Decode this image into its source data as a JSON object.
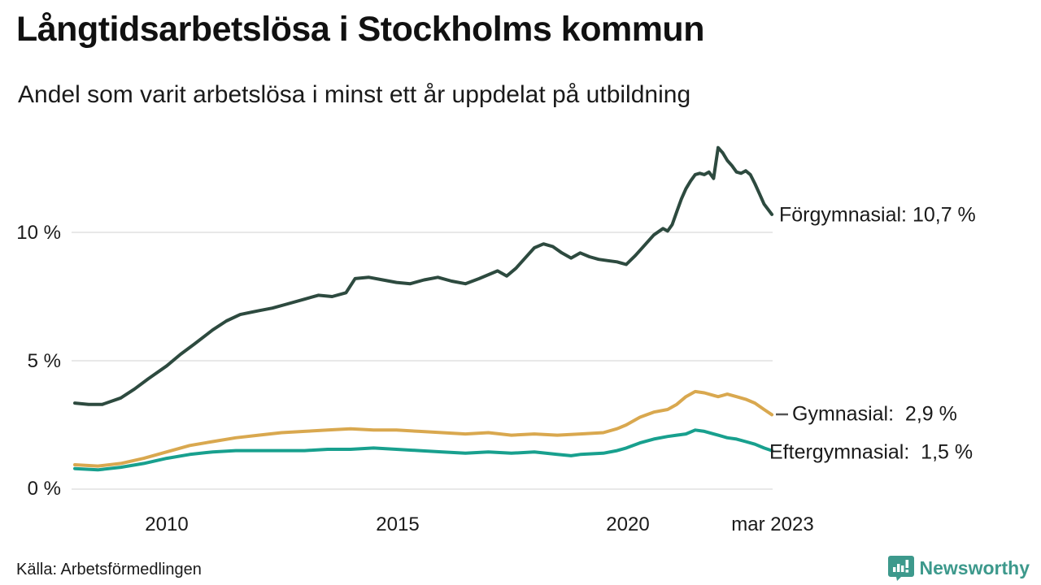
{
  "header": {
    "title": "Långtidsarbetslösa i Stockholms kommun",
    "subtitle": "Andel som varit arbetslösa i minst ett år uppdelat på utbildning"
  },
  "source": {
    "label": "Källa: Arbetsförmedlingen"
  },
  "branding": {
    "name": "Newsworthy",
    "color": "#3d998c",
    "icon": "bar-chart-speech-bubble-icon"
  },
  "chart_data": {
    "type": "line",
    "title": "Långtidsarbetslösa i Stockholms kommun",
    "subtitle": "Andel som varit arbetslösa i minst ett år uppdelat på utbildning",
    "grid": true,
    "grid_color": "#e8e8e8",
    "legend_position": "end-of-line-labels-right",
    "x_axis": {
      "range": [
        2008.0,
        2023.25
      ],
      "ticks": [
        {
          "label": "2010",
          "year": 2010
        },
        {
          "label": "2015",
          "year": 2015
        },
        {
          "label": "2020",
          "year": 2020
        },
        {
          "label": "mar 2023",
          "year": 2023.17
        }
      ]
    },
    "y_axis": {
      "unit": "%",
      "range": [
        0,
        13.5
      ],
      "ticks": [
        {
          "label": "0 %",
          "value": 0
        },
        {
          "label": "5 %",
          "value": 5
        },
        {
          "label": "10 %",
          "value": 10
        }
      ]
    },
    "series": [
      {
        "name": "Förgymnasial",
        "end_label": "Förgymnasial: 10,7 %",
        "end_value": 10.7,
        "color": "#2d4a3f",
        "points": [
          [
            2008.0,
            3.35
          ],
          [
            2008.3,
            3.3
          ],
          [
            2008.6,
            3.3
          ],
          [
            2009.0,
            3.55
          ],
          [
            2009.3,
            3.9
          ],
          [
            2009.6,
            4.3
          ],
          [
            2010.0,
            4.8
          ],
          [
            2010.3,
            5.25
          ],
          [
            2010.6,
            5.65
          ],
          [
            2011.0,
            6.2
          ],
          [
            2011.3,
            6.55
          ],
          [
            2011.6,
            6.8
          ],
          [
            2012.0,
            6.95
          ],
          [
            2012.3,
            7.05
          ],
          [
            2012.6,
            7.2
          ],
          [
            2013.0,
            7.4
          ],
          [
            2013.3,
            7.55
          ],
          [
            2013.6,
            7.5
          ],
          [
            2013.9,
            7.65
          ],
          [
            2014.1,
            8.2
          ],
          [
            2014.4,
            8.25
          ],
          [
            2014.7,
            8.15
          ],
          [
            2015.0,
            8.05
          ],
          [
            2015.3,
            8.0
          ],
          [
            2015.6,
            8.15
          ],
          [
            2015.9,
            8.25
          ],
          [
            2016.2,
            8.1
          ],
          [
            2016.5,
            8.0
          ],
          [
            2016.8,
            8.2
          ],
          [
            2017.0,
            8.35
          ],
          [
            2017.2,
            8.5
          ],
          [
            2017.4,
            8.3
          ],
          [
            2017.6,
            8.6
          ],
          [
            2017.8,
            9.0
          ],
          [
            2018.0,
            9.4
          ],
          [
            2018.2,
            9.55
          ],
          [
            2018.4,
            9.45
          ],
          [
            2018.6,
            9.2
          ],
          [
            2018.8,
            9.0
          ],
          [
            2019.0,
            9.2
          ],
          [
            2019.2,
            9.05
          ],
          [
            2019.4,
            8.95
          ],
          [
            2019.6,
            8.9
          ],
          [
            2019.8,
            8.85
          ],
          [
            2020.0,
            8.75
          ],
          [
            2020.2,
            9.1
          ],
          [
            2020.4,
            9.5
          ],
          [
            2020.6,
            9.9
          ],
          [
            2020.8,
            10.15
          ],
          [
            2020.9,
            10.05
          ],
          [
            2021.0,
            10.3
          ],
          [
            2021.1,
            10.8
          ],
          [
            2021.2,
            11.3
          ],
          [
            2021.3,
            11.7
          ],
          [
            2021.4,
            12.0
          ],
          [
            2021.5,
            12.25
          ],
          [
            2021.6,
            12.3
          ],
          [
            2021.7,
            12.25
          ],
          [
            2021.8,
            12.35
          ],
          [
            2021.9,
            12.1
          ],
          [
            2022.0,
            13.3
          ],
          [
            2022.1,
            13.1
          ],
          [
            2022.2,
            12.8
          ],
          [
            2022.3,
            12.6
          ],
          [
            2022.4,
            12.35
          ],
          [
            2022.5,
            12.3
          ],
          [
            2022.6,
            12.4
          ],
          [
            2022.7,
            12.25
          ],
          [
            2022.8,
            11.9
          ],
          [
            2022.9,
            11.5
          ],
          [
            2023.0,
            11.1
          ],
          [
            2023.17,
            10.7
          ]
        ]
      },
      {
        "name": "Gymnasial",
        "end_label": "Gymnasial:  2,9 %",
        "end_value": 2.9,
        "color": "#d9a84f",
        "points": [
          [
            2008.0,
            0.95
          ],
          [
            2008.5,
            0.9
          ],
          [
            2009.0,
            1.0
          ],
          [
            2009.5,
            1.2
          ],
          [
            2010.0,
            1.45
          ],
          [
            2010.5,
            1.7
          ],
          [
            2011.0,
            1.85
          ],
          [
            2011.5,
            2.0
          ],
          [
            2012.0,
            2.1
          ],
          [
            2012.5,
            2.2
          ],
          [
            2013.0,
            2.25
          ],
          [
            2013.5,
            2.3
          ],
          [
            2014.0,
            2.35
          ],
          [
            2014.5,
            2.3
          ],
          [
            2015.0,
            2.3
          ],
          [
            2015.5,
            2.25
          ],
          [
            2016.0,
            2.2
          ],
          [
            2016.5,
            2.15
          ],
          [
            2017.0,
            2.2
          ],
          [
            2017.5,
            2.1
          ],
          [
            2018.0,
            2.15
          ],
          [
            2018.5,
            2.1
          ],
          [
            2019.0,
            2.15
          ],
          [
            2019.5,
            2.2
          ],
          [
            2019.8,
            2.35
          ],
          [
            2020.0,
            2.5
          ],
          [
            2020.3,
            2.8
          ],
          [
            2020.6,
            3.0
          ],
          [
            2020.9,
            3.1
          ],
          [
            2021.1,
            3.3
          ],
          [
            2021.3,
            3.6
          ],
          [
            2021.5,
            3.8
          ],
          [
            2021.7,
            3.75
          ],
          [
            2021.9,
            3.65
          ],
          [
            2022.0,
            3.6
          ],
          [
            2022.2,
            3.7
          ],
          [
            2022.4,
            3.6
          ],
          [
            2022.6,
            3.5
          ],
          [
            2022.8,
            3.35
          ],
          [
            2023.0,
            3.1
          ],
          [
            2023.17,
            2.9
          ]
        ]
      },
      {
        "name": "Eftergymnasial",
        "end_label": "Eftergymnasial:  1,5 %",
        "end_value": 1.5,
        "color": "#18a08e",
        "points": [
          [
            2008.0,
            0.8
          ],
          [
            2008.5,
            0.75
          ],
          [
            2009.0,
            0.85
          ],
          [
            2009.5,
            1.0
          ],
          [
            2010.0,
            1.2
          ],
          [
            2010.5,
            1.35
          ],
          [
            2011.0,
            1.45
          ],
          [
            2011.5,
            1.5
          ],
          [
            2012.0,
            1.5
          ],
          [
            2012.5,
            1.5
          ],
          [
            2013.0,
            1.5
          ],
          [
            2013.5,
            1.55
          ],
          [
            2014.0,
            1.55
          ],
          [
            2014.5,
            1.6
          ],
          [
            2015.0,
            1.55
          ],
          [
            2015.5,
            1.5
          ],
          [
            2016.0,
            1.45
          ],
          [
            2016.5,
            1.4
          ],
          [
            2017.0,
            1.45
          ],
          [
            2017.5,
            1.4
          ],
          [
            2018.0,
            1.45
          ],
          [
            2018.5,
            1.35
          ],
          [
            2018.8,
            1.3
          ],
          [
            2019.0,
            1.35
          ],
          [
            2019.5,
            1.4
          ],
          [
            2019.8,
            1.5
          ],
          [
            2020.0,
            1.6
          ],
          [
            2020.3,
            1.8
          ],
          [
            2020.6,
            1.95
          ],
          [
            2020.9,
            2.05
          ],
          [
            2021.1,
            2.1
          ],
          [
            2021.3,
            2.15
          ],
          [
            2021.5,
            2.3
          ],
          [
            2021.7,
            2.25
          ],
          [
            2021.9,
            2.15
          ],
          [
            2022.0,
            2.1
          ],
          [
            2022.2,
            2.0
          ],
          [
            2022.4,
            1.95
          ],
          [
            2022.6,
            1.85
          ],
          [
            2022.8,
            1.75
          ],
          [
            2023.0,
            1.6
          ],
          [
            2023.17,
            1.5
          ]
        ]
      }
    ]
  }
}
